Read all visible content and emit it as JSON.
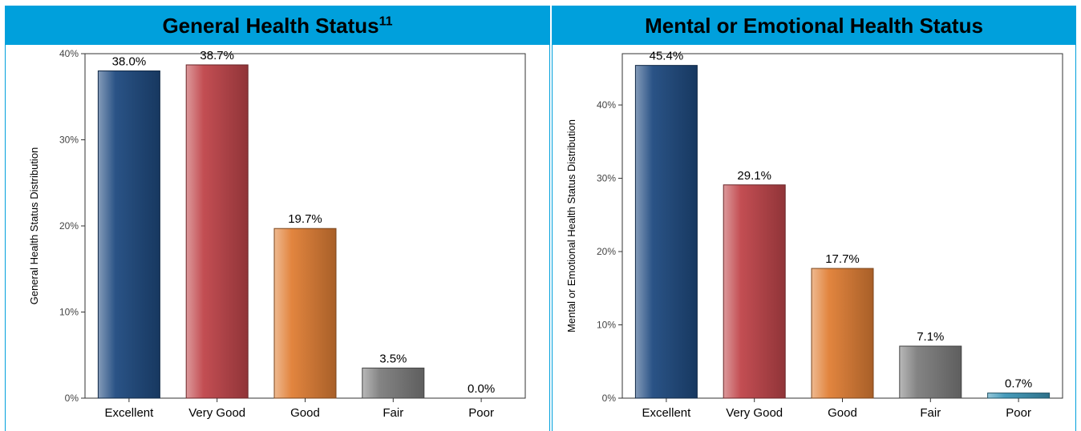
{
  "chart_data": [
    {
      "type": "bar",
      "title": "General Health Status",
      "title_superscript": "11",
      "ylabel": "General Health Status Distribution",
      "categories": [
        "Excellent",
        "Very Good",
        "Good",
        "Fair",
        "Poor"
      ],
      "values": [
        38.0,
        38.7,
        19.7,
        3.5,
        0.0
      ],
      "value_labels": [
        "38.0%",
        "38.7%",
        "19.7%",
        "3.5%",
        "0.0%"
      ],
      "ylim": [
        0,
        40
      ],
      "yticks": [
        0,
        10,
        20,
        30,
        40
      ],
      "ytick_labels": [
        "0%",
        "10%",
        "20%",
        "30%",
        "40%"
      ],
      "colors": [
        "#1f4a80",
        "#c0454a",
        "#e07f35",
        "#7d7d7d",
        "#3d97b8"
      ],
      "grid": false,
      "legend": "none"
    },
    {
      "type": "bar",
      "title": "Mental or Emotional Health Status",
      "title_superscript": "",
      "ylabel": "Mental or Emotional Health Status Distribution",
      "categories": [
        "Excellent",
        "Very Good",
        "Good",
        "Fair",
        "Poor"
      ],
      "values": [
        45.4,
        29.1,
        17.7,
        7.1,
        0.7
      ],
      "value_labels": [
        "45.4%",
        "29.1%",
        "17.7%",
        "7.1%",
        "0.7%"
      ],
      "ylim": [
        0,
        47
      ],
      "yticks": [
        0,
        10,
        20,
        30,
        40
      ],
      "ytick_labels": [
        "0%",
        "10%",
        "20%",
        "30%",
        "40%"
      ],
      "colors": [
        "#1f4a80",
        "#c0454a",
        "#e07f35",
        "#7d7d7d",
        "#3d97b8"
      ],
      "grid": false,
      "legend": "none"
    }
  ]
}
